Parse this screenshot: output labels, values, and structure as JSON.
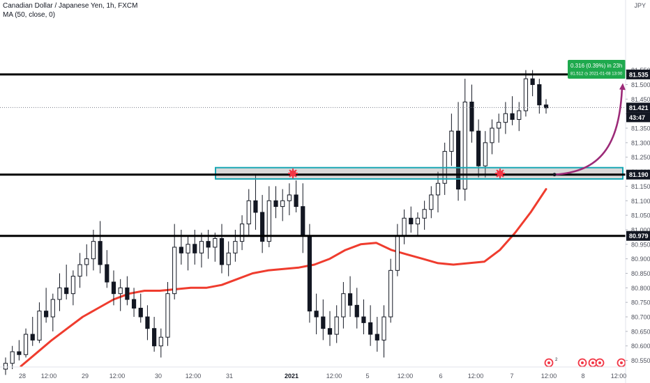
{
  "header": {
    "title": "Canadian Dollar / Japanese Yen, 1h, FXCM",
    "indicator": "MA (50, close, 0)",
    "currency": "JPY"
  },
  "colors": {
    "candle": "#131722",
    "ma": "#ef3c2e",
    "zone_border": "#19a7b4",
    "zone_fill": "rgba(120,120,120,0.28)",
    "arrow": "#9c2a78",
    "marker": "#f23645",
    "projection_bg": "#1ea94d",
    "price_tag": "#131722"
  },
  "projection": {
    "line1": "0.316 (0.39%) in 23h",
    "line2_price": "81.512",
    "line2_date": "2021-01-08",
    "line2_time": "13:00"
  },
  "price_tags": {
    "top": "81.535",
    "last": "81.421",
    "countdown": "43:47",
    "zone": "81.190",
    "bottom": "80.979"
  },
  "bottom_icons": [
    "economic-event-icon",
    "economic-events-group-icon",
    "japan-flag-icon"
  ],
  "chart_data": {
    "type": "candlestick",
    "symbol": "Canadian Dollar / Japanese Yen, 1h, FXCM",
    "y_ticks": [
      "81.550",
      "81.500",
      "81.450",
      "81.400",
      "81.350",
      "81.300",
      "81.250",
      "81.200",
      "81.150",
      "81.100",
      "81.050",
      "81.000",
      "80.950",
      "80.900",
      "80.850",
      "80.800",
      "80.750",
      "80.700",
      "80.650",
      "80.600",
      "80.550"
    ],
    "y_range": [
      80.525,
      81.765
    ],
    "x_ticks": [
      "28",
      "12:00",
      "29",
      "12:00",
      "30",
      "12:00",
      "31",
      "2021",
      "12:00",
      "5",
      "12:00",
      "6",
      "12:00",
      "7",
      "12:00",
      "8",
      "12:00"
    ],
    "horizontal_levels": [
      81.535,
      81.19,
      80.979
    ],
    "zone": [
      81.175,
      81.214
    ],
    "current_price": 81.421,
    "ma_series_name": "MA (50, close, 0)",
    "ma_points": [
      80.53,
      80.575,
      80.62,
      80.66,
      80.7,
      80.73,
      80.76,
      80.78,
      80.79,
      80.79,
      80.795,
      80.8,
      80.8,
      80.81,
      80.83,
      80.85,
      80.86,
      80.865,
      80.87,
      80.88,
      80.9,
      80.93,
      80.95,
      80.955,
      80.93,
      80.915,
      80.9,
      80.885,
      80.88,
      80.885,
      80.89,
      80.93,
      80.99,
      81.06,
      81.14
    ],
    "candles_ohlc": [
      [
        80.52,
        80.56,
        80.5,
        80.54
      ],
      [
        80.54,
        80.6,
        80.52,
        80.58
      ],
      [
        80.58,
        80.62,
        80.55,
        80.57
      ],
      [
        80.57,
        80.66,
        80.56,
        80.64
      ],
      [
        80.64,
        80.7,
        80.6,
        80.62
      ],
      [
        80.62,
        80.75,
        80.61,
        80.72
      ],
      [
        80.72,
        80.8,
        80.68,
        80.7
      ],
      [
        80.7,
        80.78,
        80.65,
        80.76
      ],
      [
        80.76,
        80.85,
        80.72,
        80.8
      ],
      [
        80.8,
        80.88,
        80.76,
        80.78
      ],
      [
        80.78,
        80.86,
        80.74,
        80.84
      ],
      [
        80.84,
        80.92,
        80.8,
        80.88
      ],
      [
        80.88,
        80.95,
        80.84,
        80.9
      ],
      [
        80.9,
        81.0,
        80.86,
        80.96
      ],
      [
        80.96,
        81.03,
        80.85,
        80.88
      ],
      [
        80.88,
        80.93,
        80.8,
        80.82
      ],
      [
        80.82,
        80.86,
        80.74,
        80.78
      ],
      [
        80.78,
        80.83,
        80.72,
        80.8
      ],
      [
        80.8,
        80.84,
        80.74,
        80.76
      ],
      [
        80.76,
        80.8,
        80.7,
        80.73
      ],
      [
        80.73,
        80.78,
        80.68,
        80.7
      ],
      [
        80.7,
        80.74,
        80.62,
        80.66
      ],
      [
        80.66,
        80.7,
        80.58,
        80.6
      ],
      [
        80.6,
        80.66,
        80.56,
        80.63
      ],
      [
        80.63,
        80.82,
        80.6,
        80.78
      ],
      [
        80.78,
        81.02,
        80.76,
        80.94
      ],
      [
        80.94,
        81.0,
        80.88,
        80.92
      ],
      [
        80.92,
        80.98,
        80.86,
        80.95
      ],
      [
        80.95,
        81.0,
        80.88,
        80.92
      ],
      [
        80.92,
        80.99,
        80.87,
        80.96
      ],
      [
        80.96,
        81.0,
        80.9,
        80.94
      ],
      [
        80.94,
        80.99,
        80.89,
        80.97
      ],
      [
        80.97,
        81.02,
        80.85,
        80.88
      ],
      [
        80.88,
        80.96,
        80.84,
        80.92
      ],
      [
        80.92,
        81.0,
        80.89,
        80.96
      ],
      [
        80.96,
        81.05,
        80.93,
        81.02
      ],
      [
        81.02,
        81.14,
        80.98,
        81.1
      ],
      [
        81.1,
        81.19,
        81.0,
        81.06
      ],
      [
        81.06,
        81.12,
        80.92,
        80.96
      ],
      [
        80.96,
        81.15,
        80.94,
        81.1
      ],
      [
        81.1,
        81.15,
        81.04,
        81.08
      ],
      [
        81.08,
        81.14,
        81.03,
        81.1
      ],
      [
        81.1,
        81.16,
        81.05,
        81.12
      ],
      [
        81.12,
        81.17,
        81.06,
        81.08
      ],
      [
        81.08,
        81.16,
        80.92,
        80.98
      ],
      [
        80.98,
        81.02,
        80.68,
        80.72
      ],
      [
        80.72,
        80.78,
        80.64,
        80.7
      ],
      [
        80.7,
        80.76,
        80.62,
        80.66
      ],
      [
        80.66,
        80.72,
        80.6,
        80.64
      ],
      [
        80.64,
        80.74,
        80.61,
        80.7
      ],
      [
        80.7,
        80.82,
        80.66,
        80.78
      ],
      [
        80.78,
        80.84,
        80.7,
        80.74
      ],
      [
        80.74,
        80.8,
        80.66,
        80.7
      ],
      [
        80.7,
        80.76,
        80.64,
        80.68
      ],
      [
        80.68,
        80.74,
        80.6,
        80.64
      ],
      [
        80.64,
        80.7,
        80.58,
        80.62
      ],
      [
        80.62,
        80.74,
        80.56,
        80.7
      ],
      [
        80.7,
        80.9,
        80.68,
        80.86
      ],
      [
        80.86,
        81.02,
        80.84,
        80.98
      ],
      [
        80.98,
        81.07,
        80.95,
        81.04
      ],
      [
        81.04,
        81.08,
        80.99,
        81.02
      ],
      [
        81.02,
        81.06,
        80.98,
        81.04
      ],
      [
        81.04,
        81.1,
        81.0,
        81.07
      ],
      [
        81.07,
        81.15,
        81.04,
        81.12
      ],
      [
        81.12,
        81.2,
        81.06,
        81.16
      ],
      [
        81.16,
        81.3,
        81.12,
        81.27
      ],
      [
        81.27,
        81.4,
        81.22,
        81.34
      ],
      [
        81.34,
        81.44,
        81.1,
        81.14
      ],
      [
        81.14,
        81.52,
        81.1,
        81.44
      ],
      [
        81.44,
        81.5,
        81.3,
        81.34
      ],
      [
        81.34,
        81.38,
        81.18,
        81.22
      ],
      [
        81.22,
        81.34,
        81.18,
        81.3
      ],
      [
        81.3,
        81.38,
        81.26,
        81.35
      ],
      [
        81.35,
        81.4,
        81.3,
        81.37
      ],
      [
        81.37,
        81.44,
        81.33,
        81.4
      ],
      [
        81.4,
        81.46,
        81.36,
        81.38
      ],
      [
        81.38,
        81.44,
        81.34,
        81.41
      ],
      [
        81.41,
        81.55,
        81.39,
        81.52
      ],
      [
        81.52,
        81.55,
        81.46,
        81.5
      ],
      [
        81.5,
        81.52,
        81.4,
        81.43
      ],
      [
        81.43,
        81.45,
        81.4,
        81.42
      ]
    ]
  }
}
